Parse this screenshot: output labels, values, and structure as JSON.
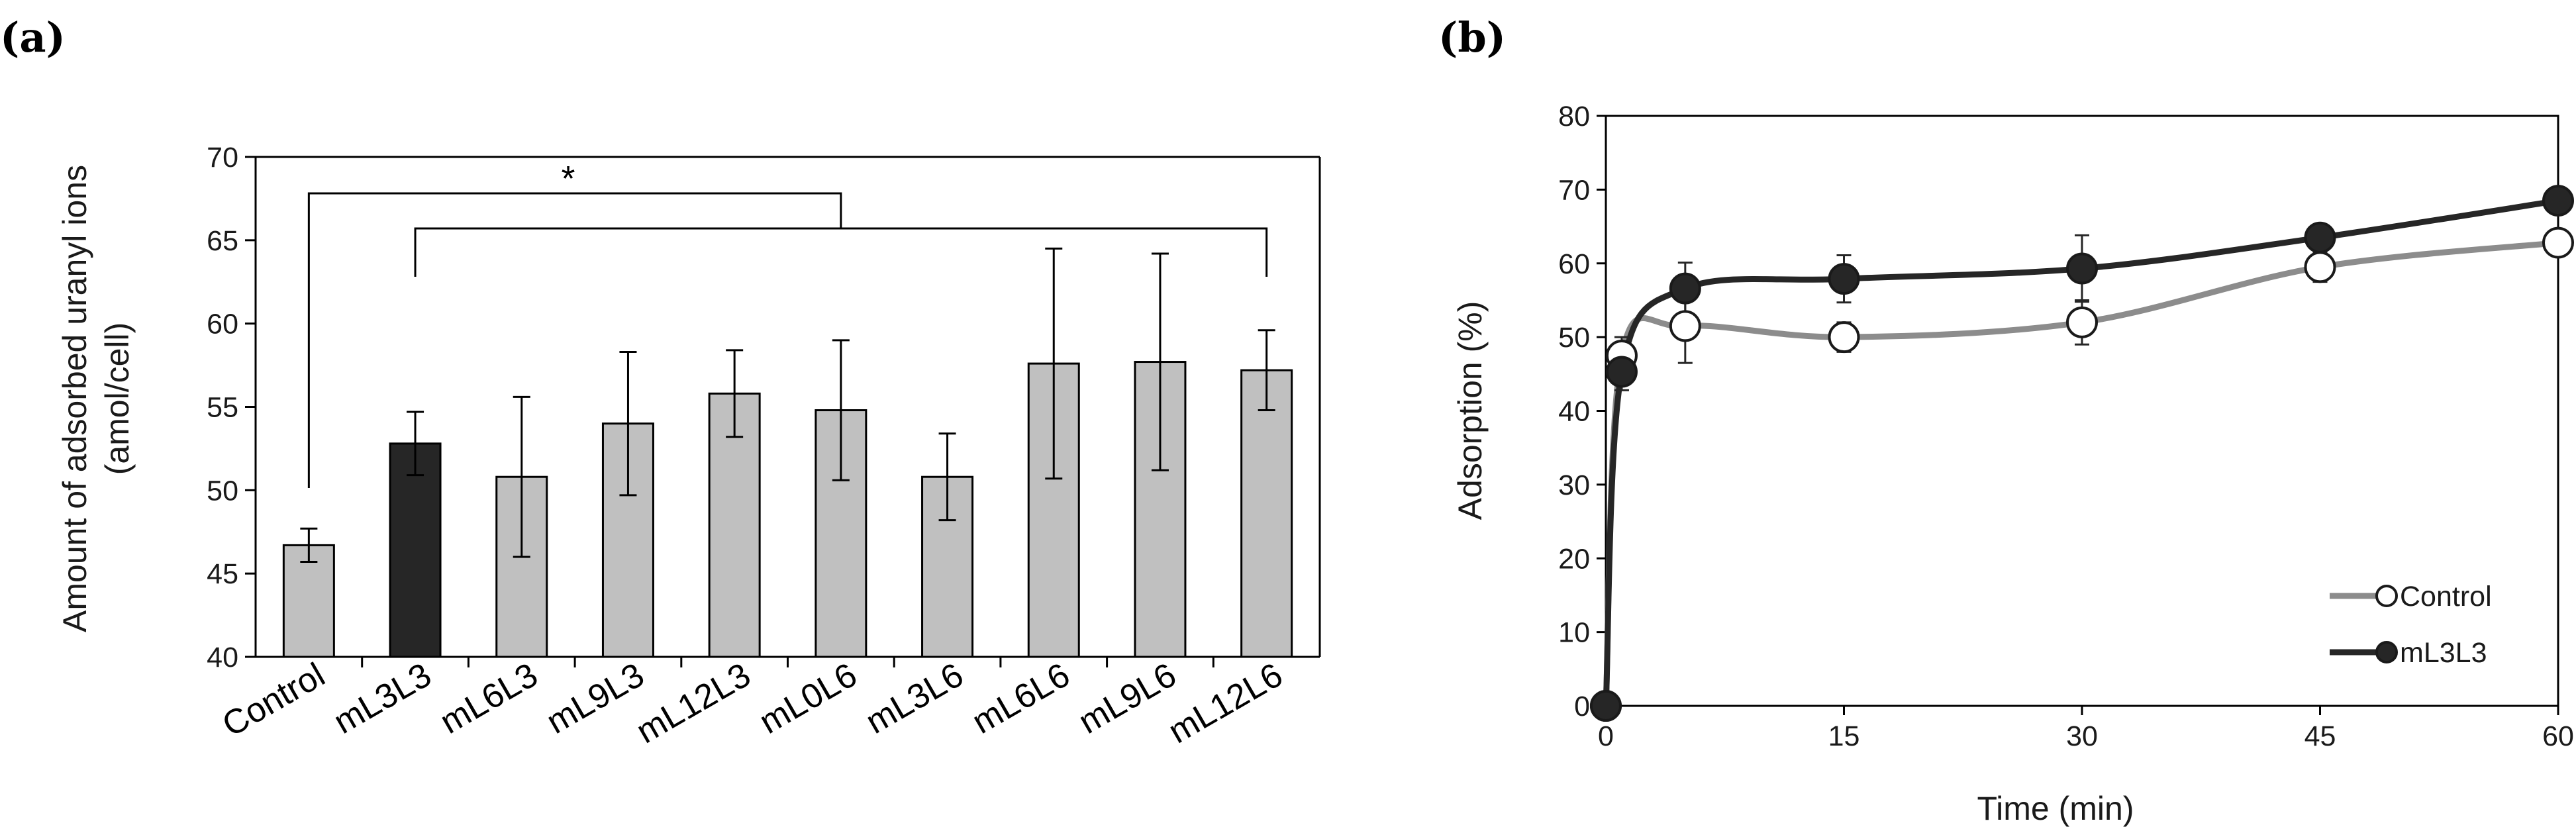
{
  "panels": {
    "a": "(a)",
    "b": "(b)"
  },
  "chart_data": [
    {
      "type": "bar",
      "panel": "(a)",
      "ylabel_line1": "Amount of adsorbed uranyl ions",
      "ylabel_line2": "(amol/cell)",
      "xlabel": "",
      "ylim": [
        40,
        70
      ],
      "yticks": [
        40,
        45,
        50,
        55,
        60,
        65,
        70
      ],
      "categories": [
        "Control",
        "mL3L3",
        "mL6L3",
        "mL9L3",
        "mL12L3",
        "mL0L6",
        "mL3L6",
        "mL6L6",
        "mL9L6",
        "mL12L6"
      ],
      "values": [
        46.7,
        52.8,
        50.8,
        54.0,
        55.8,
        54.8,
        50.8,
        57.6,
        57.7,
        57.2
      ],
      "errors": [
        1.0,
        1.9,
        4.8,
        4.3,
        2.6,
        4.2,
        2.6,
        6.9,
        6.5,
        2.4
      ],
      "bar_colors": [
        "#c0c0c0",
        "#262626",
        "#c0c0c0",
        "#c0c0c0",
        "#c0c0c0",
        "#c0c0c0",
        "#c0c0c0",
        "#c0c0c0",
        "#c0c0c0",
        "#c0c0c0"
      ],
      "significance": {
        "label": "*",
        "from": "Control",
        "to_group": [
          "mL3L3",
          "mL12L6"
        ]
      }
    },
    {
      "type": "line",
      "panel": "(b)",
      "xlabel": "Time (min)",
      "ylabel": "Adsorption (%)",
      "xlim": [
        0,
        60
      ],
      "ylim": [
        0,
        80
      ],
      "xticks": [
        0,
        15,
        30,
        45,
        60
      ],
      "yticks": [
        0,
        10,
        20,
        30,
        40,
        50,
        60,
        70,
        80
      ],
      "legend_position": "bottom-right",
      "series": [
        {
          "name": "Control",
          "color": "#8c8c8c",
          "marker": "open-circle",
          "x": [
            0,
            1,
            5,
            15,
            30,
            45,
            60
          ],
          "y": [
            0,
            47.5,
            51.5,
            50.0,
            52.0,
            59.5,
            62.8
          ],
          "err": [
            0,
            2.5,
            5.0,
            2.0,
            3.0,
            2.0,
            1.5
          ]
        },
        {
          "name": "mL3L3",
          "color": "#262626",
          "marker": "filled-circle",
          "x": [
            0,
            1,
            5,
            15,
            30,
            45,
            60
          ],
          "y": [
            0,
            45.3,
            56.6,
            57.9,
            59.3,
            63.5,
            68.5
          ],
          "err": [
            0,
            2.5,
            3.5,
            3.2,
            4.5,
            1.5,
            1.5
          ]
        }
      ]
    }
  ]
}
